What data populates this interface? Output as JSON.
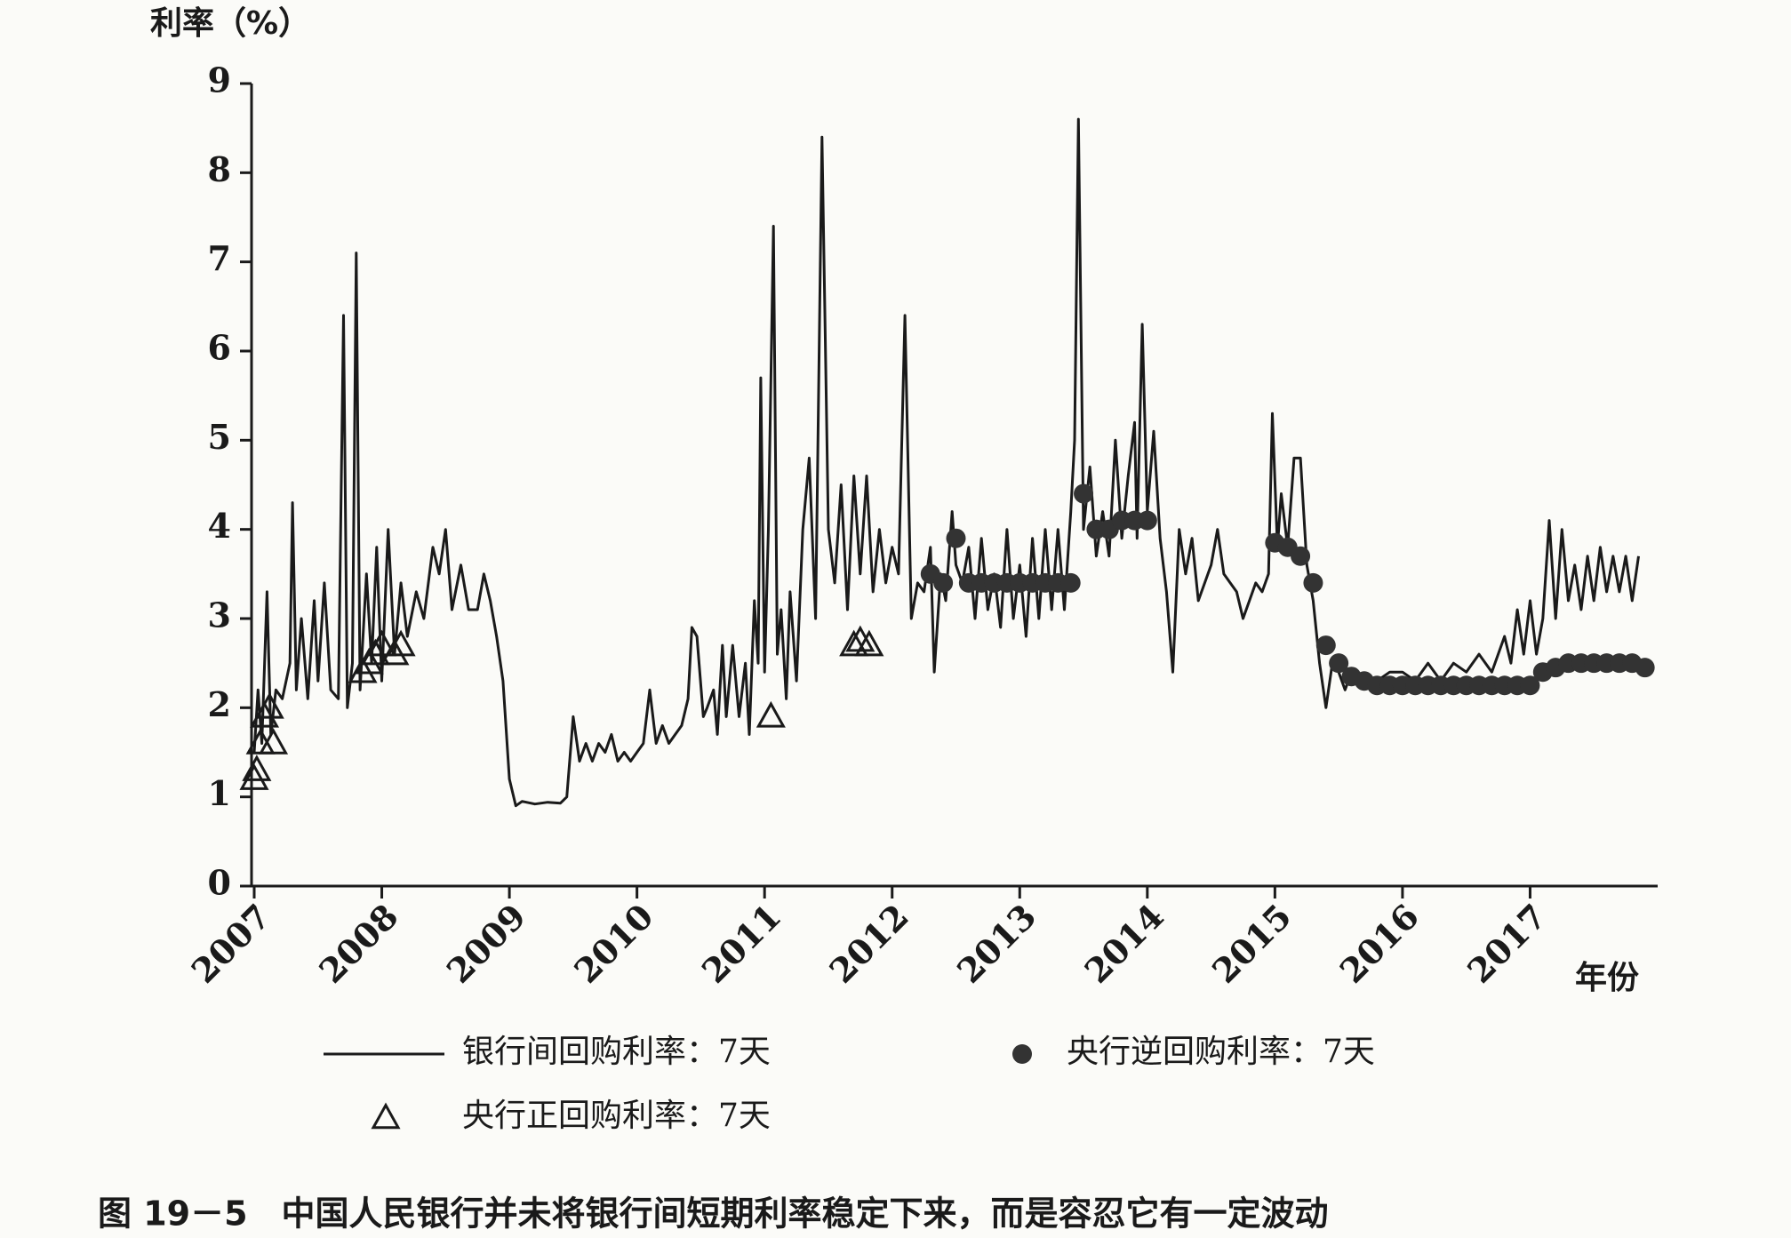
{
  "chart_data": {
    "type": "line",
    "y_label": "利率（%）",
    "x_label": "年份",
    "caption": "图 19－5　中国人民银行并未将银行间短期利率稳定下来，而是容忍它有一定波动",
    "xlim": [
      2007,
      2018
    ],
    "xticks": [
      2007,
      2008,
      2009,
      2010,
      2011,
      2012,
      2013,
      2014,
      2015,
      2016,
      2017
    ],
    "ylim": [
      0,
      9
    ],
    "yticks": [
      0,
      1,
      2,
      3,
      4,
      5,
      6,
      7,
      8,
      9
    ],
    "grid": false,
    "series": [
      {
        "name": "银行间回购利率：7天",
        "style": "line",
        "color": "#1a1a1a",
        "x": [
          2007.0,
          2007.03,
          2007.06,
          2007.1,
          2007.13,
          2007.17,
          2007.22,
          2007.28,
          2007.3,
          2007.33,
          2007.37,
          2007.42,
          2007.47,
          2007.5,
          2007.55,
          2007.6,
          2007.66,
          2007.7,
          2007.73,
          2007.77,
          2007.8,
          2007.83,
          2007.88,
          2007.92,
          2007.96,
          2008.0,
          2008.05,
          2008.1,
          2008.15,
          2008.2,
          2008.27,
          2008.33,
          2008.4,
          2008.45,
          2008.5,
          2008.55,
          2008.62,
          2008.68,
          2008.75,
          2008.8,
          2008.85,
          2008.9,
          2008.95,
          2009.0,
          2009.05,
          2009.1,
          2009.2,
          2009.3,
          2009.4,
          2009.45,
          2009.5,
          2009.55,
          2009.6,
          2009.65,
          2009.7,
          2009.75,
          2009.8,
          2009.85,
          2009.9,
          2009.95,
          2010.0,
          2010.05,
          2010.1,
          2010.15,
          2010.2,
          2010.25,
          2010.3,
          2010.35,
          2010.4,
          2010.43,
          2010.47,
          2010.52,
          2010.55,
          2010.6,
          2010.63,
          2010.67,
          2010.7,
          2010.75,
          2010.8,
          2010.85,
          2010.88,
          2010.92,
          2010.95,
          2010.97,
          2011.0,
          2011.03,
          2011.07,
          2011.1,
          2011.13,
          2011.17,
          2011.2,
          2011.25,
          2011.3,
          2011.35,
          2011.4,
          2011.45,
          2011.5,
          2011.55,
          2011.6,
          2011.65,
          2011.7,
          2011.75,
          2011.8,
          2011.85,
          2011.9,
          2011.95,
          2012.0,
          2012.05,
          2012.1,
          2012.15,
          2012.2,
          2012.25,
          2012.3,
          2012.33,
          2012.38,
          2012.42,
          2012.47,
          2012.5,
          2012.55,
          2012.6,
          2012.65,
          2012.7,
          2012.75,
          2012.8,
          2012.85,
          2012.9,
          2012.95,
          2013.0,
          2013.05,
          2013.1,
          2013.15,
          2013.2,
          2013.25,
          2013.3,
          2013.35,
          2013.4,
          2013.43,
          2013.46,
          2013.5,
          2013.55,
          2013.6,
          2013.65,
          2013.7,
          2013.75,
          2013.8,
          2013.85,
          2013.9,
          2013.92,
          2013.96,
          2014.0,
          2014.05,
          2014.1,
          2014.15,
          2014.2,
          2014.25,
          2014.3,
          2014.35,
          2014.4,
          2014.45,
          2014.5,
          2014.55,
          2014.6,
          2014.65,
          2014.7,
          2014.75,
          2014.8,
          2014.85,
          2014.9,
          2014.95,
          2014.98,
          2015.02,
          2015.05,
          2015.1,
          2015.15,
          2015.2,
          2015.25,
          2015.3,
          2015.35,
          2015.4,
          2015.45,
          2015.5,
          2015.55,
          2015.6,
          2015.7,
          2015.8,
          2015.9,
          2016.0,
          2016.1,
          2016.2,
          2016.3,
          2016.4,
          2016.5,
          2016.6,
          2016.7,
          2016.8,
          2016.85,
          2016.9,
          2016.95,
          2017.0,
          2017.05,
          2017.1,
          2017.15,
          2017.2,
          2017.25,
          2017.3,
          2017.35,
          2017.4,
          2017.45,
          2017.5,
          2017.55,
          2017.6,
          2017.65,
          2017.7,
          2017.75,
          2017.8,
          2017.85
        ],
        "values": [
          1.5,
          2.2,
          1.6,
          3.3,
          1.7,
          2.2,
          2.1,
          2.5,
          4.3,
          2.2,
          3.0,
          2.1,
          3.2,
          2.3,
          3.4,
          2.2,
          2.1,
          6.4,
          2.0,
          2.5,
          7.1,
          2.2,
          3.5,
          2.5,
          3.8,
          2.3,
          4.0,
          2.6,
          3.4,
          2.8,
          3.3,
          3.0,
          3.8,
          3.5,
          4.0,
          3.1,
          3.6,
          3.1,
          3.1,
          3.5,
          3.2,
          2.8,
          2.3,
          1.2,
          0.9,
          0.95,
          0.92,
          0.94,
          0.93,
          1.0,
          1.9,
          1.4,
          1.6,
          1.4,
          1.6,
          1.5,
          1.7,
          1.4,
          1.5,
          1.4,
          1.5,
          1.6,
          2.2,
          1.6,
          1.8,
          1.6,
          1.7,
          1.8,
          2.1,
          2.9,
          2.8,
          1.9,
          2.0,
          2.2,
          1.7,
          2.7,
          1.9,
          2.7,
          1.9,
          2.5,
          1.7,
          3.2,
          2.5,
          5.7,
          2.4,
          4.0,
          7.4,
          2.6,
          3.1,
          2.1,
          3.3,
          2.3,
          4.0,
          4.8,
          3.0,
          8.4,
          4.0,
          3.4,
          4.5,
          3.1,
          4.6,
          3.5,
          4.6,
          3.3,
          4.0,
          3.4,
          3.8,
          3.5,
          6.4,
          3.0,
          3.4,
          3.3,
          3.8,
          2.4,
          3.5,
          3.2,
          4.2,
          3.6,
          3.4,
          3.8,
          3.0,
          3.9,
          3.1,
          3.5,
          2.9,
          4.0,
          3.0,
          3.6,
          2.8,
          3.9,
          3.0,
          4.0,
          3.1,
          4.0,
          3.1,
          4.2,
          5.0,
          8.6,
          4.0,
          4.7,
          3.7,
          4.2,
          3.7,
          5.0,
          3.9,
          4.6,
          5.2,
          3.9,
          6.3,
          4.2,
          5.1,
          3.9,
          3.3,
          2.4,
          4.0,
          3.5,
          3.9,
          3.2,
          3.4,
          3.6,
          4.0,
          3.5,
          3.4,
          3.3,
          3.0,
          3.2,
          3.4,
          3.3,
          3.5,
          5.3,
          3.8,
          4.4,
          3.8,
          4.8,
          4.8,
          3.6,
          3.2,
          2.5,
          2.0,
          2.5,
          2.4,
          2.2,
          2.4,
          2.3,
          2.3,
          2.4,
          2.4,
          2.3,
          2.5,
          2.3,
          2.5,
          2.4,
          2.6,
          2.4,
          2.8,
          2.5,
          3.1,
          2.6,
          3.2,
          2.6,
          3.0,
          4.1,
          3.0,
          4.0,
          3.2,
          3.6,
          3.1,
          3.7,
          3.2,
          3.8,
          3.3,
          3.7,
          3.3,
          3.7,
          3.2,
          3.7
        ]
      },
      {
        "name": "央行逆回购利率：7天",
        "style": "dot",
        "color": "#333333",
        "x": [
          2012.3,
          2012.4,
          2012.5,
          2012.6,
          2012.7,
          2012.8,
          2012.9,
          2013.0,
          2013.1,
          2013.2,
          2013.3,
          2013.4,
          2013.5,
          2013.6,
          2013.7,
          2013.8,
          2013.9,
          2014.0,
          2015.0,
          2015.1,
          2015.2,
          2015.3,
          2015.4,
          2015.5,
          2015.6,
          2015.7,
          2015.8,
          2015.9,
          2016.0,
          2016.1,
          2016.2,
          2016.3,
          2016.4,
          2016.5,
          2016.6,
          2016.7,
          2016.8,
          2016.9,
          2017.0,
          2017.1,
          2017.2,
          2017.3,
          2017.4,
          2017.5,
          2017.6,
          2017.7,
          2017.8,
          2017.9
        ],
        "values": [
          3.5,
          3.4,
          3.9,
          3.4,
          3.4,
          3.4,
          3.4,
          3.4,
          3.4,
          3.4,
          3.4,
          3.4,
          4.4,
          4.0,
          4.0,
          4.1,
          4.1,
          4.1,
          3.85,
          3.8,
          3.7,
          3.4,
          2.7,
          2.5,
          2.35,
          2.3,
          2.25,
          2.25,
          2.25,
          2.25,
          2.25,
          2.25,
          2.25,
          2.25,
          2.25,
          2.25,
          2.25,
          2.25,
          2.25,
          2.4,
          2.45,
          2.5,
          2.5,
          2.5,
          2.5,
          2.5,
          2.5,
          2.45
        ]
      },
      {
        "name": "央行正回购利率：7天",
        "style": "triangle",
        "color": "#1a1a1a",
        "x": [
          2007.0,
          2007.02,
          2007.05,
          2007.08,
          2007.12,
          2007.15,
          2007.85,
          2007.9,
          2007.95,
          2008.0,
          2008.1,
          2008.15,
          2011.05,
          2011.7,
          2011.75,
          2011.82
        ],
        "values": [
          1.2,
          1.3,
          1.6,
          1.9,
          2.0,
          1.6,
          2.4,
          2.5,
          2.6,
          2.7,
          2.6,
          2.7,
          1.9,
          2.7,
          2.75,
          2.7
        ]
      }
    ]
  }
}
